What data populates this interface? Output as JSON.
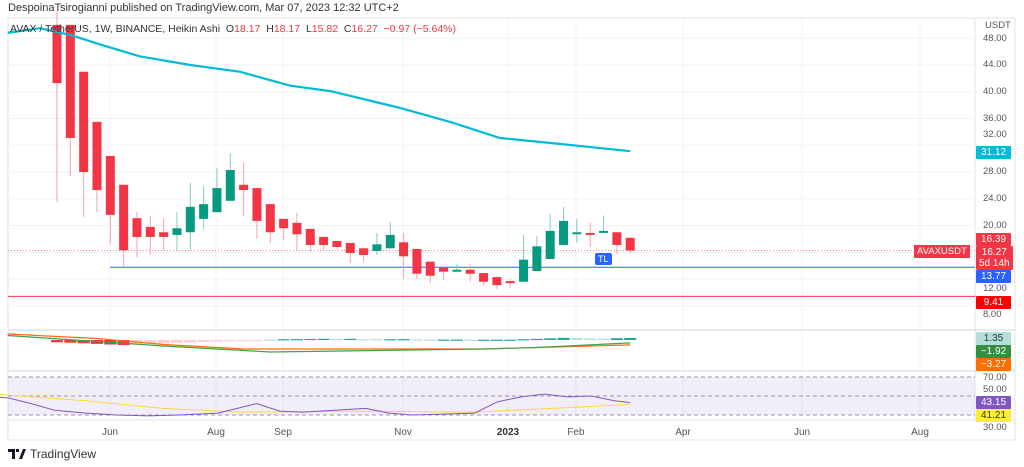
{
  "header": {
    "text": "DespoinaTsirogianni published on TradingView.com, Mar 07, 2023 12:32 UTC+2"
  },
  "legend": {
    "symbol": "AVAX / TetherUS, 1W, BINANCE, Heikin Ashi",
    "o_label": "O",
    "o": "18.17",
    "h_label": "H",
    "h": "18.17",
    "l_label": "L",
    "l": "15.82",
    "c_label": "C",
    "c": "16.27",
    "change": "−0.97 (−5.64%)"
  },
  "price_axis": {
    "unit": "USDT",
    "ticks": [
      "48.00",
      "44.00",
      "40.00",
      "36.00",
      "32.00",
      "28.00",
      "24.00",
      "20.00",
      "12.00",
      "8.00"
    ]
  },
  "rsi_axis": {
    "ticks": [
      "70.00",
      "50.00",
      "30.00"
    ]
  },
  "x_axis": {
    "labels": [
      "Jun",
      "Aug",
      "Sep",
      "Nov",
      "2023",
      "Feb",
      "Apr",
      "Jun",
      "Aug"
    ]
  },
  "badges": {
    "ma": {
      "text": "31.12",
      "color": "#00bcd4"
    },
    "prev_close": {
      "text": "16.39",
      "color": "#f23645"
    },
    "last": {
      "text": "16.27",
      "color": "#f23645"
    },
    "countdown": {
      "text": "5d 14h"
    },
    "support": {
      "text": "13.77",
      "color": "#2962ff"
    },
    "low_line": {
      "text": "9.41",
      "color": "#ff0000"
    },
    "macd_hist": {
      "text": "1.35",
      "color": "#b2dfdb"
    },
    "macd": {
      "text": "−1.92",
      "color": "#388e3c"
    },
    "macd_signal": {
      "text": "−3.27",
      "color": "#ff6d00"
    },
    "rsi": {
      "text": "43.15",
      "color": "#7e57c2"
    },
    "rsi_ma": {
      "text": "41.21",
      "color": "#ffeb3b"
    }
  },
  "symbol_label": "AVAXUSDT",
  "tl_badge": "TL",
  "footer": {
    "brand": "TradingView"
  },
  "chart_data": {
    "type": "candlestick",
    "title": "AVAX / TetherUS, 1W, BINANCE, Heikin Ashi",
    "ylabel": "USDT",
    "ylim": [
      7,
      49
    ],
    "candles": [
      [
        50,
        52,
        23.5,
        41.3
      ],
      [
        50,
        50,
        27.4,
        33.1
      ],
      [
        43,
        43,
        21.3,
        28
      ],
      [
        35.5,
        35.5,
        22,
        25.3
      ],
      [
        30.4,
        30.4,
        17.2,
        21.6
      ],
      [
        26.1,
        26.1,
        13.8,
        16.3
      ],
      [
        21.1,
        22,
        15.3,
        18.3
      ],
      [
        19.8,
        21.4,
        15.7,
        18.3
      ],
      [
        19,
        21.1,
        16.3,
        18.3
      ],
      [
        18.6,
        22,
        16.3,
        19.6
      ],
      [
        19,
        26.4,
        16.3,
        22.8
      ],
      [
        21,
        25.9,
        19.5,
        23.2
      ],
      [
        22,
        28.6,
        22,
        25.6
      ],
      [
        23.7,
        30.8,
        23.7,
        28.3
      ],
      [
        26.1,
        29.4,
        21.4,
        25.3
      ],
      [
        25.6,
        25.6,
        18,
        20.7
      ],
      [
        23.2,
        23.2,
        17.4,
        19
      ],
      [
        21,
        21,
        17.8,
        19.6
      ],
      [
        20.4,
        21.9,
        16.3,
        18.7
      ],
      [
        19.5,
        19.5,
        16.1,
        17.1
      ],
      [
        18.3,
        18.3,
        16.3,
        17.1
      ],
      [
        17.7,
        17.7,
        16.5,
        16.8
      ],
      [
        17.4,
        17.4,
        14.4,
        15.9
      ],
      [
        16.6,
        16.6,
        14.6,
        15.6
      ],
      [
        16.2,
        18.9,
        15.6,
        17.2
      ],
      [
        16.6,
        20.5,
        16.6,
        18.6
      ],
      [
        17.5,
        18.9,
        12,
        15.4
      ],
      [
        16.5,
        16.5,
        12,
        12.8
      ],
      [
        14.6,
        14.6,
        11.4,
        12.5
      ],
      [
        13.7,
        14,
        11.8,
        13.1
      ],
      [
        13.2,
        14.3,
        13.2,
        13.4
      ],
      [
        13.4,
        14.3,
        11.6,
        12.8
      ],
      [
        12.9,
        12.9,
        11.1,
        11.6
      ],
      [
        12.3,
        12.3,
        10.5,
        11.1
      ],
      [
        11.7,
        12,
        10.7,
        11.4
      ],
      [
        11.6,
        18.6,
        11.6,
        14.9
      ],
      [
        13.2,
        18.4,
        13.2,
        16.9
      ],
      [
        15,
        21.7,
        15,
        19.2
      ],
      [
        17.1,
        22.8,
        17.1,
        20.7
      ],
      [
        18.9,
        21,
        17.4,
        19
      ],
      [
        18.9,
        20.4,
        16.8,
        18.7
      ],
      [
        19,
        21.5,
        19,
        19.2
      ],
      [
        19,
        19,
        15.7,
        17.1
      ],
      [
        18.17,
        18.17,
        15.82,
        16.27
      ]
    ],
    "candle_format": "open,high,low,close",
    "moving_average": [
      [
        -3.7,
        48.8
      ],
      [
        -1.3,
        49.5
      ],
      [
        1,
        48.5
      ],
      [
        3.2,
        47.1
      ],
      [
        6.2,
        45.3
      ],
      [
        10,
        44
      ],
      [
        13.7,
        43
      ],
      [
        17.5,
        40.9
      ],
      [
        20.5,
        40.1
      ],
      [
        25.7,
        37.6
      ],
      [
        29.5,
        35.5
      ],
      [
        33.2,
        33.1
      ],
      [
        37.7,
        32.2
      ],
      [
        43,
        31.12
      ]
    ],
    "horizontal_lines": [
      13.77,
      9.41
    ],
    "macd": {
      "hist": [
        -1.5,
        -1.8,
        -2.2,
        -2.6,
        -3,
        -3.4,
        -3.0,
        -2.6,
        -2.2,
        -1.9,
        -1.6,
        -1.3,
        -1.0,
        -0.8,
        -0.6,
        -0.4,
        0.3,
        0.5,
        0.6,
        0.7,
        0.8,
        0.7,
        0.8,
        0.6,
        0.5,
        0.5,
        0.6,
        0.4,
        0.3,
        0.3,
        0.3,
        0.2,
        0.2,
        0.2,
        0.2,
        0.5,
        0.8,
        1.1,
        1.4,
        1.2,
        1.0,
        0.9,
        1.2,
        1.35
      ],
      "macd_line": [
        [
          -3.7,
          3
        ],
        [
          3,
          -1
        ],
        [
          8,
          -4
        ],
        [
          16,
          -8
        ],
        [
          24,
          -7
        ],
        [
          32,
          -6
        ],
        [
          36,
          -5
        ],
        [
          43,
          -1.92
        ]
      ],
      "signal_line": [
        [
          -3.7,
          4
        ],
        [
          3,
          1
        ],
        [
          8,
          -3
        ],
        [
          14,
          -6
        ],
        [
          24,
          -6
        ],
        [
          32,
          -6
        ],
        [
          38,
          -4.5
        ],
        [
          43,
          -3.27
        ]
      ]
    },
    "rsi": {
      "bands": [
        70,
        50,
        30
      ],
      "rsi_line": [
        [
          -3.7,
          50
        ],
        [
          0,
          48
        ],
        [
          3,
          42
        ],
        [
          6,
          35
        ],
        [
          10,
          32
        ],
        [
          14,
          30
        ],
        [
          18,
          29
        ],
        [
          22,
          30
        ],
        [
          27,
          32
        ],
        [
          30,
          38
        ],
        [
          32,
          42
        ],
        [
          35,
          34
        ],
        [
          38,
          33
        ],
        [
          42,
          35
        ],
        [
          46,
          37
        ],
        [
          49,
          32
        ],
        [
          52,
          30
        ],
        [
          56,
          31
        ],
        [
          60,
          32
        ],
        [
          63,
          44
        ],
        [
          66,
          49
        ],
        [
          69,
          52
        ],
        [
          72,
          49
        ],
        [
          75,
          50
        ],
        [
          78,
          45
        ],
        [
          80,
          43.15
        ]
      ],
      "rsi_ma": [
        [
          -3.7,
          53
        ],
        [
          10,
          45
        ],
        [
          20,
          37
        ],
        [
          30,
          33
        ],
        [
          45,
          34
        ],
        [
          60,
          33
        ],
        [
          70,
          37
        ],
        [
          80,
          41.21
        ]
      ]
    },
    "x_labels_index": {
      "Jun": 4,
      "Aug": 12,
      "Sep": 17,
      "Nov": 26,
      "2023": 34,
      "Feb": 39,
      "Apr": 47,
      "Jun2": 56,
      "Aug2": 65
    }
  }
}
